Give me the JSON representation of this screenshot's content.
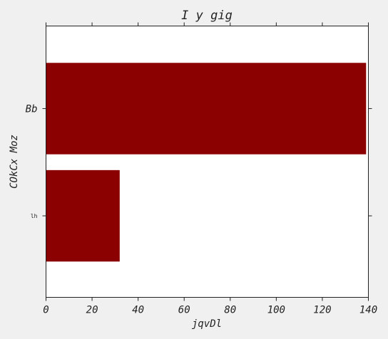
{
  "chart_data": {
    "type": "bar",
    "orientation": "horizontal",
    "title": "I y gig",
    "xlabel": "jqvDl",
    "ylabel": "COkCx  Moz",
    "categories": [
      "lh",
      "Bb"
    ],
    "values": [
      32,
      139
    ],
    "xlim": [
      0,
      140
    ],
    "xticks": [
      0,
      20,
      40,
      60,
      80,
      100,
      120,
      140
    ],
    "grid": false,
    "bar_color": "#8b0000",
    "background": "#f0f0f0",
    "plot_background": "#ffffff"
  }
}
